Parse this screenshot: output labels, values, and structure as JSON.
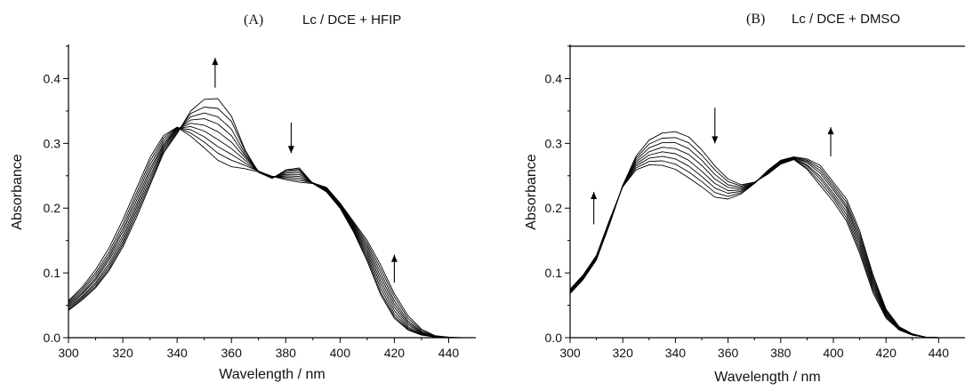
{
  "chart_data": [
    {
      "type": "line",
      "panel_label": "(A)",
      "title": "Lc / DCE + HFIP",
      "xlabel": "Wavelength / nm",
      "ylabel": "Absorbance",
      "xlim": [
        300,
        450
      ],
      "ylim": [
        0,
        0.45
      ],
      "xticks": [
        300,
        320,
        340,
        360,
        380,
        400,
        420,
        440
      ],
      "yticks": [
        0.0,
        0.1,
        0.2,
        0.3,
        0.4
      ],
      "ytick_labels": [
        "0.0",
        "0.1",
        "0.2",
        "0.3",
        "0.4"
      ],
      "arrows": [
        {
          "x": 354,
          "y_from": 0.386,
          "y_to": 0.432,
          "direction": "up"
        },
        {
          "x": 382,
          "y_from": 0.332,
          "y_to": 0.285,
          "direction": "down"
        },
        {
          "x": 420,
          "y_from": 0.085,
          "y_to": 0.128,
          "direction": "up"
        }
      ],
      "x": [
        300,
        305,
        310,
        315,
        320,
        325,
        330,
        335,
        340,
        345,
        350,
        355,
        360,
        365,
        370,
        375,
        380,
        385,
        390,
        395,
        400,
        405,
        410,
        415,
        420,
        425,
        430,
        435,
        440,
        445,
        450
      ],
      "series": [
        {
          "values": [
            0.042,
            0.058,
            0.077,
            0.104,
            0.14,
            0.185,
            0.235,
            0.285,
            0.315,
            0.35,
            0.368,
            0.369,
            0.342,
            0.29,
            0.255,
            0.246,
            0.259,
            0.262,
            0.238,
            0.225,
            0.2,
            0.163,
            0.118,
            0.066,
            0.03,
            0.012,
            0.004,
            0.001,
            0.0,
            0.0,
            0.0
          ]
        },
        {
          "values": [
            0.043,
            0.06,
            0.079,
            0.107,
            0.144,
            0.19,
            0.239,
            0.288,
            0.317,
            0.346,
            0.356,
            0.354,
            0.334,
            0.288,
            0.256,
            0.246,
            0.258,
            0.26,
            0.238,
            0.226,
            0.201,
            0.165,
            0.122,
            0.07,
            0.033,
            0.013,
            0.005,
            0.001,
            0.0,
            0.0,
            0.0
          ]
        },
        {
          "values": [
            0.045,
            0.062,
            0.082,
            0.111,
            0.148,
            0.195,
            0.244,
            0.291,
            0.319,
            0.341,
            0.347,
            0.341,
            0.322,
            0.284,
            0.256,
            0.247,
            0.256,
            0.258,
            0.238,
            0.227,
            0.202,
            0.167,
            0.126,
            0.076,
            0.037,
            0.015,
            0.005,
            0.001,
            0.0,
            0.0,
            0.0
          ]
        },
        {
          "values": [
            0.047,
            0.064,
            0.085,
            0.115,
            0.153,
            0.2,
            0.249,
            0.294,
            0.321,
            0.336,
            0.338,
            0.33,
            0.312,
            0.281,
            0.257,
            0.247,
            0.254,
            0.255,
            0.239,
            0.228,
            0.203,
            0.169,
            0.13,
            0.082,
            0.042,
            0.017,
            0.006,
            0.001,
            0.0,
            0.0,
            0.0
          ]
        },
        {
          "values": [
            0.049,
            0.067,
            0.089,
            0.12,
            0.158,
            0.205,
            0.255,
            0.297,
            0.322,
            0.331,
            0.328,
            0.318,
            0.302,
            0.278,
            0.257,
            0.248,
            0.252,
            0.252,
            0.239,
            0.229,
            0.204,
            0.171,
            0.134,
            0.088,
            0.047,
            0.02,
            0.007,
            0.002,
            0.0,
            0.0,
            0.0
          ]
        },
        {
          "values": [
            0.051,
            0.069,
            0.092,
            0.124,
            0.164,
            0.211,
            0.26,
            0.3,
            0.323,
            0.326,
            0.319,
            0.306,
            0.292,
            0.274,
            0.257,
            0.248,
            0.25,
            0.249,
            0.239,
            0.23,
            0.205,
            0.173,
            0.138,
            0.094,
            0.052,
            0.023,
            0.008,
            0.002,
            0.0,
            0.0,
            0.0
          ]
        },
        {
          "values": [
            0.053,
            0.072,
            0.096,
            0.128,
            0.169,
            0.217,
            0.266,
            0.304,
            0.324,
            0.321,
            0.31,
            0.295,
            0.283,
            0.27,
            0.257,
            0.249,
            0.248,
            0.246,
            0.239,
            0.231,
            0.206,
            0.175,
            0.142,
            0.1,
            0.057,
            0.026,
            0.009,
            0.002,
            0.0,
            0.0,
            0.0
          ]
        },
        {
          "values": [
            0.055,
            0.075,
            0.1,
            0.133,
            0.175,
            0.223,
            0.272,
            0.308,
            0.325,
            0.316,
            0.302,
            0.285,
            0.274,
            0.266,
            0.257,
            0.249,
            0.246,
            0.243,
            0.239,
            0.232,
            0.207,
            0.177,
            0.146,
            0.106,
            0.063,
            0.03,
            0.011,
            0.003,
            0.0,
            0.0,
            0.0
          ]
        },
        {
          "values": [
            0.057,
            0.078,
            0.105,
            0.139,
            0.182,
            0.23,
            0.278,
            0.312,
            0.325,
            0.311,
            0.293,
            0.274,
            0.264,
            0.261,
            0.256,
            0.249,
            0.244,
            0.24,
            0.238,
            0.232,
            0.208,
            0.179,
            0.15,
            0.112,
            0.068,
            0.034,
            0.013,
            0.003,
            0.001,
            0.0,
            0.0
          ]
        }
      ]
    },
    {
      "type": "line",
      "panel_label": "(B)",
      "title": "Lc / DCE + DMSO",
      "xlabel": "Wavelength / nm",
      "ylabel": "Absorbance",
      "xlim": [
        300,
        450
      ],
      "ylim": [
        0,
        0.45
      ],
      "xticks": [
        300,
        320,
        340,
        360,
        380,
        400,
        420,
        440
      ],
      "yticks": [
        0.0,
        0.1,
        0.2,
        0.3,
        0.4
      ],
      "ytick_labels": [
        "0.0",
        "0.1",
        "0.2",
        "0.3",
        "0.4"
      ],
      "arrows": [
        {
          "x": 309,
          "y_from": 0.175,
          "y_to": 0.225,
          "direction": "up"
        },
        {
          "x": 355,
          "y_from": 0.355,
          "y_to": 0.3,
          "direction": "down"
        },
        {
          "x": 399,
          "y_from": 0.28,
          "y_to": 0.325,
          "direction": "up"
        }
      ],
      "x": [
        300,
        305,
        310,
        315,
        320,
        325,
        330,
        335,
        340,
        345,
        350,
        355,
        360,
        365,
        370,
        375,
        380,
        385,
        390,
        395,
        400,
        405,
        410,
        415,
        420,
        425,
        430,
        435,
        440,
        445,
        450
      ],
      "series": [
        {
          "values": [
            0.068,
            0.09,
            0.12,
            0.175,
            0.235,
            0.28,
            0.305,
            0.316,
            0.318,
            0.31,
            0.29,
            0.265,
            0.245,
            0.236,
            0.24,
            0.252,
            0.268,
            0.275,
            0.26,
            0.235,
            0.21,
            0.18,
            0.13,
            0.07,
            0.03,
            0.012,
            0.004,
            0.001,
            0.0,
            0.0,
            0.0
          ]
        },
        {
          "values": [
            0.069,
            0.091,
            0.121,
            0.176,
            0.235,
            0.277,
            0.299,
            0.308,
            0.309,
            0.301,
            0.282,
            0.259,
            0.241,
            0.234,
            0.24,
            0.253,
            0.269,
            0.276,
            0.262,
            0.24,
            0.215,
            0.185,
            0.135,
            0.074,
            0.032,
            0.012,
            0.004,
            0.001,
            0.0,
            0.0,
            0.0
          ]
        },
        {
          "values": [
            0.07,
            0.092,
            0.122,
            0.177,
            0.235,
            0.274,
            0.293,
            0.301,
            0.301,
            0.292,
            0.274,
            0.252,
            0.236,
            0.232,
            0.239,
            0.254,
            0.27,
            0.277,
            0.265,
            0.245,
            0.219,
            0.19,
            0.14,
            0.078,
            0.034,
            0.013,
            0.004,
            0.001,
            0.0,
            0.0,
            0.0
          ]
        },
        {
          "values": [
            0.071,
            0.093,
            0.123,
            0.178,
            0.234,
            0.271,
            0.287,
            0.294,
            0.292,
            0.283,
            0.266,
            0.245,
            0.232,
            0.23,
            0.239,
            0.255,
            0.271,
            0.277,
            0.267,
            0.249,
            0.223,
            0.195,
            0.145,
            0.082,
            0.036,
            0.014,
            0.005,
            0.001,
            0.0,
            0.0,
            0.0
          ]
        },
        {
          "values": [
            0.072,
            0.094,
            0.124,
            0.179,
            0.234,
            0.268,
            0.282,
            0.287,
            0.284,
            0.274,
            0.257,
            0.238,
            0.227,
            0.228,
            0.239,
            0.256,
            0.272,
            0.278,
            0.27,
            0.254,
            0.228,
            0.2,
            0.15,
            0.086,
            0.038,
            0.015,
            0.005,
            0.001,
            0.0,
            0.0,
            0.0
          ]
        },
        {
          "values": [
            0.073,
            0.095,
            0.125,
            0.18,
            0.234,
            0.265,
            0.277,
            0.28,
            0.276,
            0.265,
            0.249,
            0.231,
            0.223,
            0.226,
            0.238,
            0.256,
            0.272,
            0.278,
            0.272,
            0.258,
            0.232,
            0.204,
            0.155,
            0.09,
            0.04,
            0.016,
            0.005,
            0.001,
            0.0,
            0.0,
            0.0
          ]
        },
        {
          "values": [
            0.074,
            0.096,
            0.126,
            0.181,
            0.233,
            0.262,
            0.272,
            0.273,
            0.268,
            0.256,
            0.241,
            0.224,
            0.218,
            0.224,
            0.238,
            0.257,
            0.273,
            0.279,
            0.274,
            0.262,
            0.236,
            0.209,
            0.16,
            0.094,
            0.042,
            0.016,
            0.005,
            0.001,
            0.0,
            0.0,
            0.0
          ]
        },
        {
          "values": [
            0.075,
            0.097,
            0.127,
            0.182,
            0.233,
            0.259,
            0.267,
            0.266,
            0.26,
            0.247,
            0.233,
            0.217,
            0.214,
            0.222,
            0.238,
            0.258,
            0.274,
            0.279,
            0.276,
            0.266,
            0.24,
            0.214,
            0.165,
            0.098,
            0.044,
            0.017,
            0.006,
            0.001,
            0.0,
            0.0,
            0.0
          ]
        }
      ]
    }
  ]
}
